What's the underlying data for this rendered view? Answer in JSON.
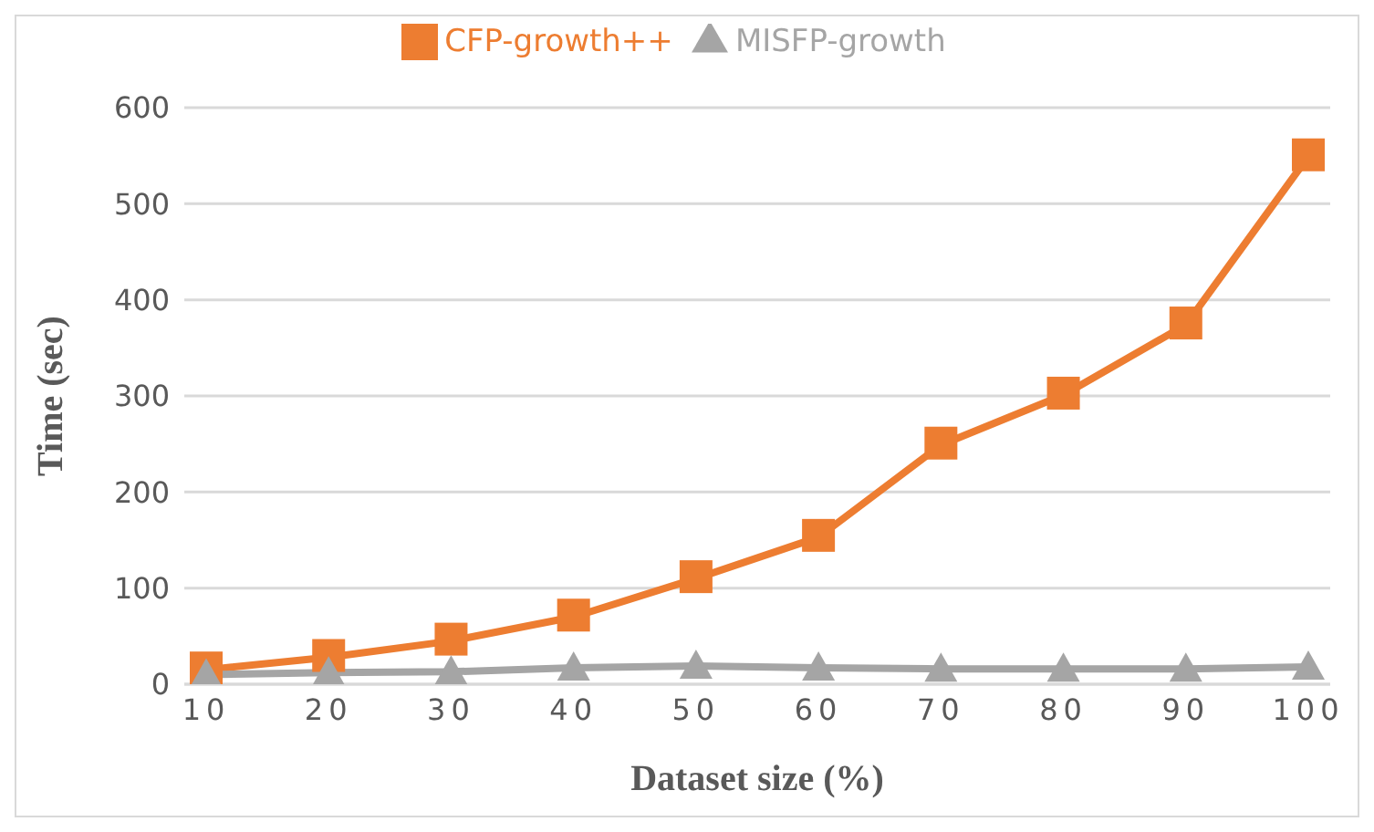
{
  "chart_data": {
    "type": "line",
    "xlabel": "Dataset size (%)",
    "ylabel": "Time (sec)",
    "categories": [
      "10",
      "20",
      "30",
      "40",
      "50",
      "60",
      "70",
      "80",
      "90",
      "100"
    ],
    "series": [
      {
        "name": "CFP-growth++",
        "color": "#ed7d31",
        "marker": "square",
        "values": [
          15,
          28,
          45,
          70,
          110,
          153,
          249,
          301,
          374,
          549
        ]
      },
      {
        "name": "MISFP-growth",
        "color": "#a5a5a5",
        "marker": "triangle",
        "values": [
          10,
          12,
          13,
          17,
          19,
          17,
          16,
          16,
          16,
          18
        ]
      }
    ],
    "ylim": [
      0,
      600
    ],
    "yticks": [
      0,
      100,
      200,
      300,
      400,
      500,
      600
    ],
    "grid": "y",
    "legend": "top"
  }
}
